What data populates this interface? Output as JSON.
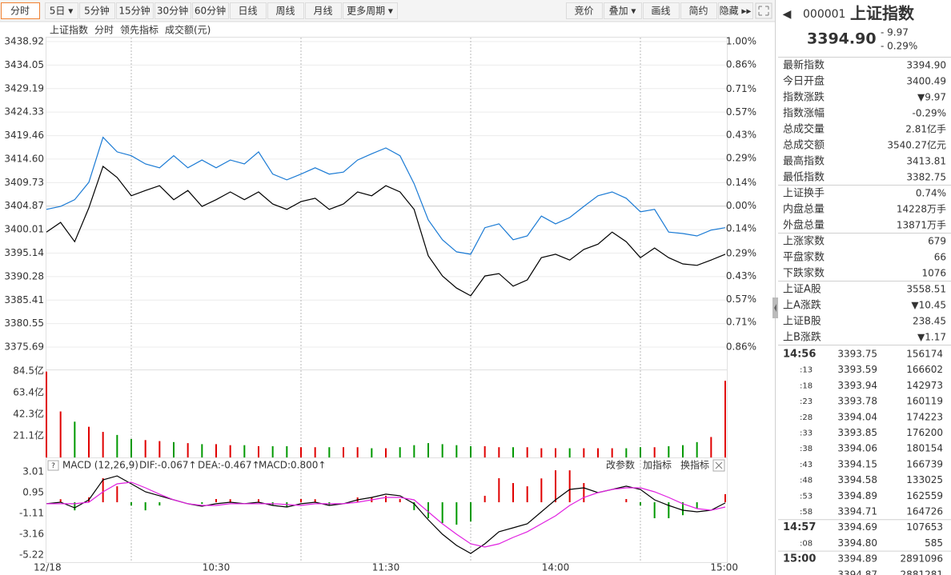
{
  "toolbar": {
    "left": [
      "分时",
      "5日 ▾",
      "5分钟",
      "15分钟",
      "30分钟",
      "60分钟",
      "日线",
      "周线",
      "月线",
      "更多周期 ▾"
    ],
    "right": [
      "竞价",
      "叠加 ▾",
      "画线",
      "简约",
      "隐藏 ▸▸"
    ]
  },
  "legend": {
    "mode": "分时",
    "volume": "成交额(元)"
  },
  "price_chart": {
    "xlim": [
      0,
      240
    ],
    "x": [
      0,
      5,
      10,
      15,
      20,
      25,
      30,
      35,
      40,
      45,
      50,
      55,
      60,
      65,
      70,
      75,
      80,
      85,
      90,
      95,
      100,
      105,
      110,
      115,
      120,
      125,
      130,
      135,
      140,
      145,
      150,
      155,
      160,
      165,
      170,
      175,
      180,
      185,
      190,
      195,
      200,
      205,
      210,
      215,
      220,
      225,
      230,
      235,
      240
    ],
    "series": [
      {
        "name": "上证指数",
        "color": "#000000",
        "values": [
          3399.5,
          3401.5,
          3397.5,
          3404.5,
          3413.1,
          3410.8,
          3407.0,
          3408.1,
          3409.1,
          3406.2,
          3408.1,
          3404.8,
          3406.2,
          3407.8,
          3406.2,
          3407.8,
          3405.3,
          3404.2,
          3405.8,
          3406.5,
          3404.2,
          3405.3,
          3407.8,
          3407.0,
          3409.1,
          3407.8,
          3404.2,
          3394.6,
          3390.4,
          3387.9,
          3386.3,
          3390.4,
          3390.9,
          3388.3,
          3389.6,
          3394.2,
          3394.9,
          3393.7,
          3395.9,
          3397.0,
          3399.5,
          3397.5,
          3394.2,
          3396.2,
          3394.2,
          3392.9,
          3392.6,
          3393.7,
          3394.9
        ]
      },
      {
        "name": "领先指标",
        "color": "#1a7ad4",
        "values": [
          3404.2,
          3404.8,
          3406.2,
          3409.8,
          3419.1,
          3416.1,
          3415.3,
          3413.6,
          3412.8,
          3415.3,
          3412.8,
          3414.4,
          3412.8,
          3414.4,
          3413.6,
          3416.1,
          3411.5,
          3410.3,
          3411.5,
          3412.8,
          3411.5,
          3411.9,
          3414.4,
          3415.7,
          3416.9,
          3415.3,
          3409.5,
          3402.0,
          3397.9,
          3395.4,
          3394.9,
          3400.4,
          3401.2,
          3397.9,
          3398.7,
          3402.8,
          3401.2,
          3402.5,
          3404.8,
          3407.0,
          3407.8,
          3406.5,
          3403.7,
          3404.2,
          3399.5,
          3399.2,
          3398.7,
          3399.9,
          3400.4
        ]
      }
    ],
    "ylim": [
      3375.69,
      3438.92
    ],
    "yticks": [
      3438.92,
      3434.05,
      3429.19,
      3424.33,
      3419.46,
      {
        "value": 3414.6,
        "label": "3414.60"
      },
      3409.73,
      3404.87,
      3400.01,
      3395.14,
      3390.28,
      3385.41,
      3380.55,
      3375.69
    ],
    "y2lim": [
      -0.86,
      1.0
    ],
    "y2ticks": [
      {
        "value": 1.0,
        "label": "1.00%"
      },
      {
        "value": 0.86,
        "label": "0.86%"
      },
      {
        "value": 0.71,
        "label": "0.71%"
      },
      {
        "value": 0.57,
        "label": "0.57%"
      },
      {
        "value": 0.43,
        "label": "0.43%"
      },
      {
        "value": 0.29,
        "label": "0.29%"
      },
      {
        "value": 0.14,
        "label": "0.14%"
      },
      {
        "value": 0,
        "label": "0.00%"
      },
      {
        "value": -0.14,
        "label": "0.14%"
      },
      {
        "value": -0.29,
        "label": "0.29%"
      },
      {
        "value": -0.43,
        "label": "0.43%"
      },
      {
        "value": -0.57,
        "label": "0.57%"
      },
      {
        "value": -0.71,
        "label": "0.71%"
      },
      {
        "value": -0.86,
        "label": "0.86%"
      }
    ],
    "xgrid": [
      30,
      90,
      150,
      210
    ]
  },
  "xticks": [
    {
      "value": 0,
      "label": "12/18"
    },
    {
      "value": 60,
      "label": "10:30"
    },
    {
      "value": 120,
      "label": "11:30"
    },
    {
      "value": 180,
      "label": "14:00"
    },
    {
      "value": 240,
      "label": "15:00"
    }
  ],
  "volume_chart": {
    "values": [
      84,
      45,
      35,
      30,
      25,
      22,
      18,
      17,
      16,
      15,
      14,
      13,
      13,
      12,
      12,
      11,
      11,
      11,
      10,
      10,
      10,
      10,
      10,
      9,
      9,
      10,
      12,
      14,
      13,
      12,
      11,
      11,
      10,
      10,
      10,
      9,
      9,
      9,
      9,
      9,
      9,
      9,
      10,
      10,
      11,
      12,
      15,
      20,
      75
    ],
    "ylim": [
      0,
      84.5
    ],
    "yticks": [
      {
        "value": 84.5,
        "label": "84.5亿"
      },
      {
        "value": 63.4,
        "label": "63.4亿"
      },
      {
        "value": 42.3,
        "label": "42.3亿"
      },
      {
        "value": 21.1,
        "label": "21.1亿"
      }
    ]
  },
  "macd_chart": {
    "title": "MACD (12,26,9)",
    "labels": [
      {
        "text": "DIF:-0.067↑",
        "color": "#000000"
      },
      {
        "text": "DEA:-0.467↑",
        "color": "#d010d0"
      },
      {
        "text": "MACD:0.800↑",
        "color": "#e00000"
      }
    ],
    "buttons": [
      "改参数",
      "加指标",
      "换指标"
    ],
    "series": [
      {
        "color": "#000000",
        "values": [
          -0.15,
          0,
          -0.55,
          0.24,
          2.22,
          2.61,
          1.82,
          1.03,
          0.64,
          0.24,
          -0.15,
          -0.39,
          -0.15,
          0,
          -0.15,
          0,
          -0.31,
          -0.47,
          -0.15,
          0,
          -0.31,
          -0.15,
          0.24,
          0.48,
          0.8,
          0.64,
          -0.15,
          -1.74,
          -3.16,
          -4.27,
          -5.06,
          -4.11,
          -2.92,
          -2.53,
          -2.13,
          -0.95,
          0.24,
          1.27,
          1.43,
          0.95,
          1.27,
          1.59,
          1.27,
          0.24,
          -0.31,
          -0.79,
          -0.95,
          -0.79,
          -0.07
        ]
      },
      {
        "color": "#e020e0",
        "values": [
          -0.15,
          -0.15,
          -0.15,
          0,
          1.03,
          1.82,
          1.98,
          1.43,
          0.8,
          0.24,
          -0.15,
          -0.31,
          -0.31,
          -0.15,
          -0.15,
          -0.15,
          -0.15,
          -0.23,
          -0.31,
          -0.15,
          -0.15,
          -0.15,
          0,
          0.24,
          0.48,
          0.48,
          0.24,
          -0.95,
          -2.13,
          -3.16,
          -4.11,
          -4.43,
          -4.11,
          -3.48,
          -2.92,
          -2.13,
          -1.34,
          -0.31,
          0.48,
          0.95,
          1.27,
          1.43,
          1.43,
          1.03,
          0.48,
          -0.15,
          -0.63,
          -0.79,
          -0.47
        ]
      }
    ],
    "bars": [
      0,
      0.3,
      -0.8,
      0.48,
      2.38,
      1.58,
      -0.32,
      -0.8,
      -0.32,
      0,
      0,
      -0.16,
      0.32,
      0.3,
      0,
      0.3,
      -0.32,
      -0.48,
      0.32,
      0.3,
      -0.32,
      0,
      0.48,
      0.48,
      0.64,
      0.32,
      -0.78,
      -1.58,
      -2.06,
      -2.22,
      -1.9,
      0.64,
      2.38,
      1.9,
      1.58,
      2.36,
      3.16,
      3.16,
      1.9,
      0,
      0,
      0.32,
      -0.32,
      -1.58,
      -1.58,
      -1.28,
      -0.64,
      0,
      0.8
    ],
    "ylim": [
      -5.22,
      3.01
    ],
    "yticks": [
      3.01,
      0.95,
      -1.11,
      -3.16,
      -5.22
    ]
  },
  "quote": {
    "code": "000001",
    "name": "上证指数",
    "price": "3394.90",
    "change": "- 9.97",
    "change_pct": "- 0.29%",
    "stats": [
      [
        {
          "label": "最新指数",
          "value": "3394.90",
          "color": "#009900"
        },
        {
          "label": "今日开盘",
          "value": "3400.49",
          "color": "#009900"
        },
        {
          "label": "指数涨跌",
          "value": "▼9.97",
          "color": "#009900"
        },
        {
          "label": "指数涨幅",
          "value": "-0.29%",
          "color": "#009900"
        },
        {
          "label": "总成交量",
          "value": "2.81亿手",
          "color": "#222222"
        },
        {
          "label": "总成交额",
          "value": "3540.27亿元",
          "color": "#1a6fd0"
        },
        {
          "label": "最高指数",
          "value": "3413.81",
          "color": "#e00000"
        },
        {
          "label": "最低指数",
          "value": "3382.75",
          "color": "#009900"
        }
      ],
      [
        {
          "label": "上证换手",
          "value": "0.74%",
          "color": "#222222"
        },
        {
          "label": "内盘总量",
          "value": "14228万手",
          "color": "#009900"
        },
        {
          "label": "外盘总量",
          "value": "13871万手",
          "color": "#e00000"
        }
      ],
      [
        {
          "label": "上涨家数",
          "value": "679",
          "color": "#e00000"
        },
        {
          "label": "平盘家数",
          "value": "66",
          "color": "#222222"
        },
        {
          "label": "下跌家数",
          "value": "1076",
          "color": "#009900"
        }
      ],
      [
        {
          "label": "上证A股",
          "value": "3558.51",
          "color": "#009900"
        },
        {
          "label": "上A涨跌",
          "value": "▼10.45",
          "color": "#009900"
        },
        {
          "label": "上证B股",
          "value": "238.45",
          "color": "#009900"
        },
        {
          "label": "上B涨跌",
          "value": "▼1.17",
          "color": "#009900"
        }
      ]
    ],
    "trades": [
      {
        "time": "14:56",
        "price": "3393.75",
        "volume": "156174",
        "color": "#e00000"
      },
      {
        "time": ":13",
        "price": "3393.59",
        "volume": "166602",
        "color": "#009900"
      },
      {
        "time": ":18",
        "price": "3393.94",
        "volume": "142973",
        "color": "#e00000"
      },
      {
        "time": ":23",
        "price": "3393.78",
        "volume": "160119",
        "color": "#009900"
      },
      {
        "time": ":28",
        "price": "3394.04",
        "volume": "174223",
        "color": "#e00000"
      },
      {
        "time": ":33",
        "price": "3393.85",
        "volume": "176200",
        "color": "#009900"
      },
      {
        "time": ":38",
        "price": "3394.06",
        "volume": "180154",
        "color": "#e00000"
      },
      {
        "time": ":43",
        "price": "3394.15",
        "volume": "166739",
        "color": "#e00000"
      },
      {
        "time": ":48",
        "price": "3394.58",
        "volume": "133025",
        "color": "#e00000"
      },
      {
        "time": ":53",
        "price": "3394.89",
        "volume": "162559",
        "color": "#e00000"
      },
      {
        "time": ":58",
        "price": "3394.71",
        "volume": "164726",
        "color": "#009900"
      },
      {
        "time": "14:57",
        "price": "3394.69",
        "volume": "107653",
        "color": "#009900"
      },
      {
        "time": ":08",
        "price": "3394.80",
        "volume": "585",
        "color": "#e00000"
      },
      {
        "time": "15:00",
        "price": "3394.89",
        "volume": "2891096",
        "color": "#e00000"
      },
      {
        "price": "3394.87",
        "volume": "2881281",
        "color": "#e00000"
      }
    ]
  }
}
